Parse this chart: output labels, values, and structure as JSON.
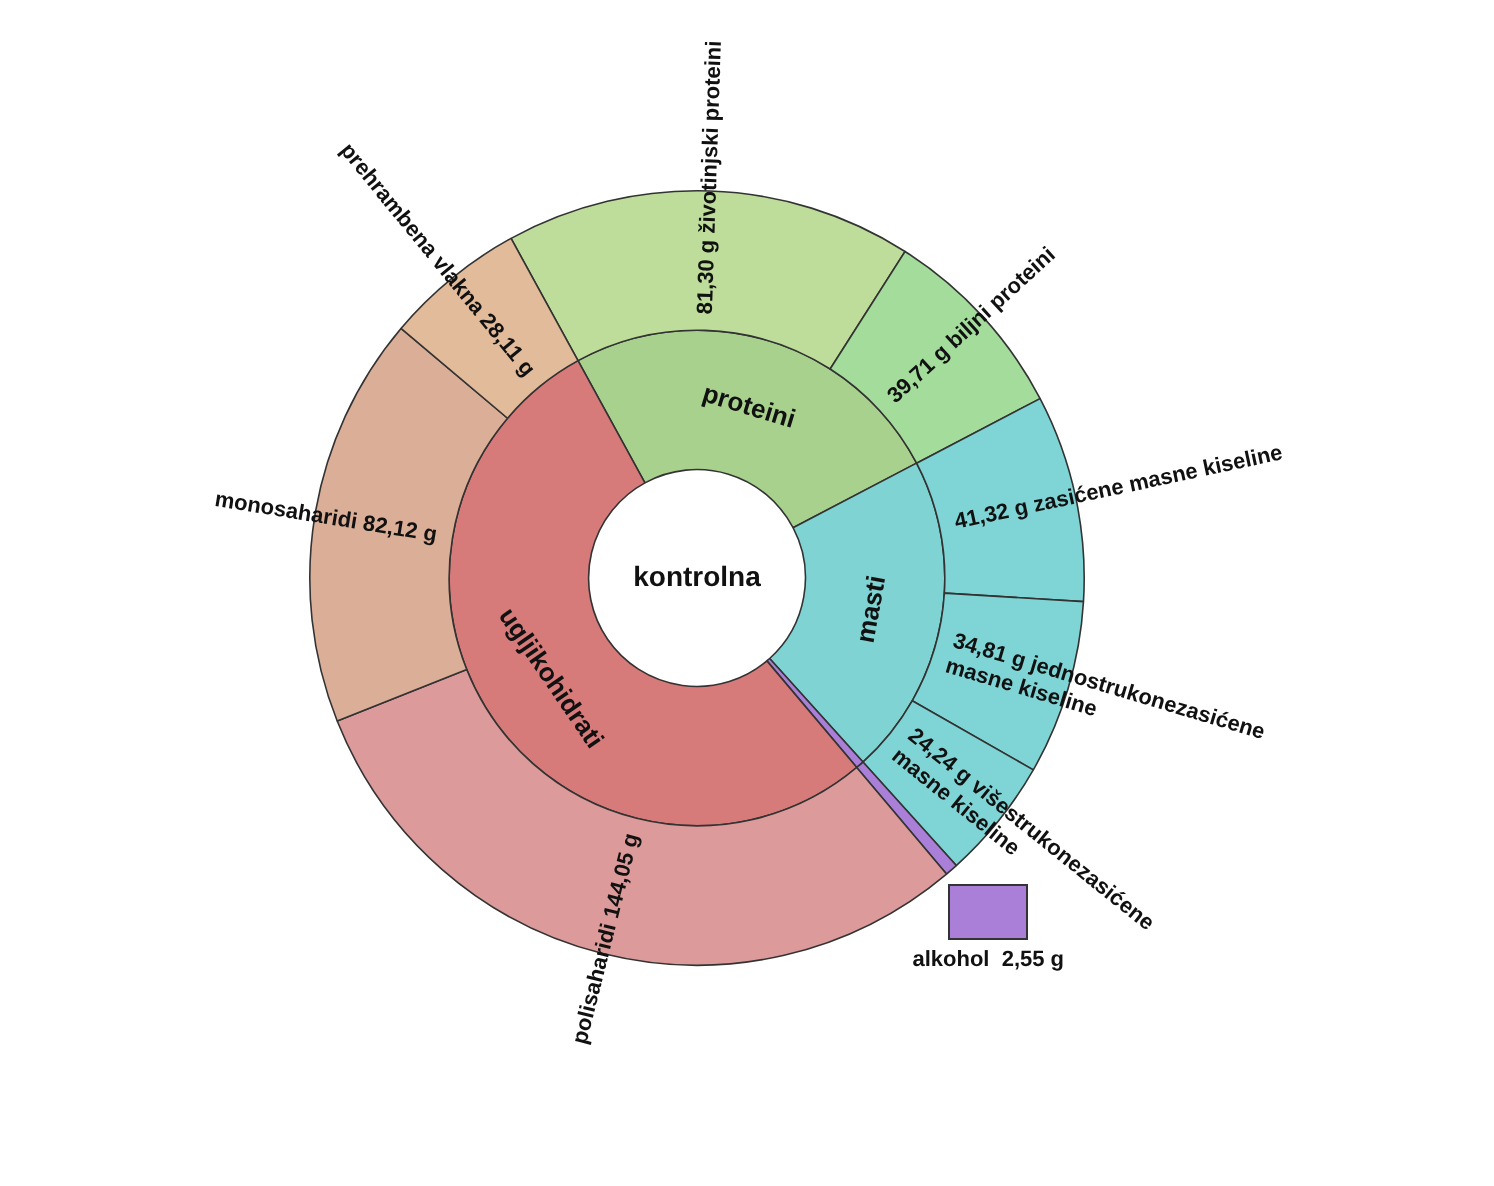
{
  "chart_data": {
    "type": "donut",
    "title": "kontrolna",
    "categories": [
      "proteini",
      "masti",
      null,
      "ugljikohidrati",
      "životinjski proteini",
      "biljni proteini",
      "zasićene masne kiseline",
      "jednostrukonezasićene masne kiseline",
      "višestrukonezasićene masne kiseline",
      "alkohol",
      "polisaharidi",
      "monosaharidi",
      "prehrambena vlakna"
    ],
    "series": [
      {
        "values": [
          25.3,
          20.99,
          0.53,
          53.18,
          null,
          null,
          null,
          null,
          null,
          null,
          null,
          null,
          null
        ],
        "colors": [
          "#a9d18e",
          "#7fd3d3",
          "#a97fd8",
          "#d77a7a",
          null,
          null,
          null,
          null,
          null,
          null,
          null,
          null,
          null
        ]
      },
      {
        "values": [
          null,
          null,
          null,
          null,
          81.3,
          39.71,
          41.32,
          34.81,
          24.24,
          2.55,
          144.05,
          82.12,
          28.11
        ],
        "value_labels": [
          null,
          null,
          null,
          null,
          "81,30 g",
          "39,71 g",
          "41,32 g",
          "34,81 g",
          "24,24 g",
          "2,55 g",
          "144,05 g",
          "82,12 g",
          "28,11 g"
        ],
        "colors": [
          null,
          null,
          null,
          null,
          "#bedd9b",
          "#a3dc9b",
          "#7fd5d6",
          "#7fd5d6",
          "#7fd5d6",
          "#a97fd8",
          "#dc9a9a",
          "#dbae98",
          "#e1bb9a"
        ]
      }
    ]
  }
}
